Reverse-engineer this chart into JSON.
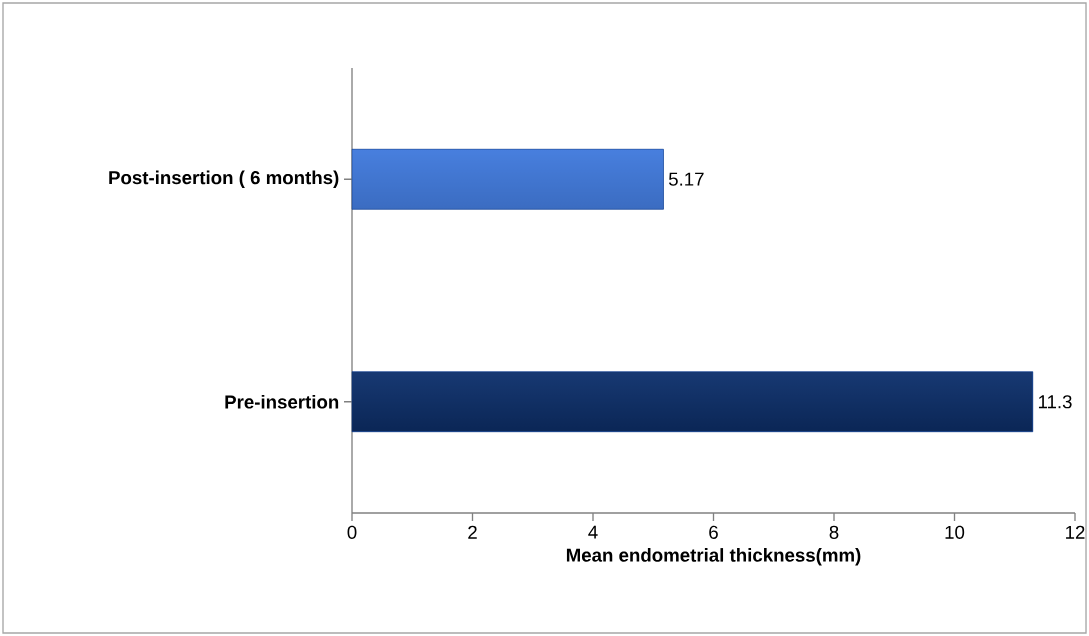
{
  "chart_data": {
    "type": "bar",
    "orientation": "horizontal",
    "categories": [
      "Post-insertion ( 6 months)",
      "Pre-insertion"
    ],
    "values": [
      5.17,
      11.3
    ],
    "color": "#1a5fd6",
    "xlim": [
      0,
      12
    ],
    "xticks": [
      0,
      2,
      4,
      6,
      8,
      10,
      12
    ],
    "xlabel": "Mean  endometrial thickness(mm)",
    "data_labels": true
  }
}
